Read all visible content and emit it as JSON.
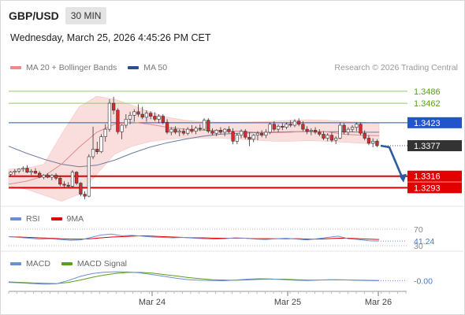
{
  "header": {
    "pair": "GBP/USD",
    "timeframe": "30 MIN",
    "datetime": "Wednesday, March 25, 2026 4:45:26 PM CET"
  },
  "legend": {
    "items": [
      {
        "label": "MA 20 + Bollinger Bands",
        "color": "#f08a8a"
      },
      {
        "label": "MA 50",
        "color": "#2b4f8c"
      }
    ],
    "credit": "Research © 2026 Trading Central"
  },
  "rsi_legend": {
    "items": [
      {
        "label": "RSI",
        "color": "#6a8fd8"
      },
      {
        "label": "9MA",
        "color": "#e00000"
      }
    ]
  },
  "macd_legend": {
    "items": [
      {
        "label": "MACD",
        "color": "#6a8fd8"
      },
      {
        "label": "MACD Signal",
        "color": "#5a9e1a"
      }
    ]
  },
  "colors": {
    "bull": "#ffffff",
    "bear": "#d92b2b",
    "wick": "#333333",
    "resistance": "#2255cc",
    "support": "#e00000",
    "target": "#8fc86a",
    "ma50": "#6b7a9c",
    "ma20": "#e08a8a",
    "band": "#fadede",
    "arrow": "#2b5c9e",
    "last": "#333333"
  },
  "chart_data": [
    {
      "type": "candlestick",
      "panel": "price",
      "x_labels": [
        "Mar 24",
        "Mar 25",
        "Mar 26"
      ],
      "ylim": [
        1.3262,
        1.3511
      ],
      "levels": [
        {
          "value": 1.3486,
          "label": "1.3486",
          "kind": "target"
        },
        {
          "value": 1.3462,
          "label": "1.3462",
          "kind": "target"
        },
        {
          "value": 1.3423,
          "label": "1.3423",
          "kind": "resistance"
        },
        {
          "value": 1.3377,
          "label": "1.3377",
          "kind": "last"
        },
        {
          "value": 1.3316,
          "label": "1.3316",
          "kind": "support"
        },
        {
          "value": 1.3293,
          "label": "1.3293",
          "kind": "support"
        }
      ],
      "candles": [
        [
          1.332,
          1.3326,
          1.3315,
          1.3324
        ],
        [
          1.3324,
          1.333,
          1.3318,
          1.3326
        ],
        [
          1.3326,
          1.3332,
          1.3322,
          1.333
        ],
        [
          1.333,
          1.3336,
          1.3325,
          1.3332
        ],
        [
          1.3332,
          1.3338,
          1.3322,
          1.3324
        ],
        [
          1.3324,
          1.333,
          1.3318,
          1.3326
        ],
        [
          1.3326,
          1.3332,
          1.332,
          1.3322
        ],
        [
          1.3322,
          1.3326,
          1.3312,
          1.3314
        ],
        [
          1.3314,
          1.332,
          1.331,
          1.3318
        ],
        [
          1.3318,
          1.3322,
          1.3312,
          1.3314
        ],
        [
          1.3314,
          1.332,
          1.3308,
          1.3318
        ],
        [
          1.3318,
          1.3322,
          1.3308,
          1.3312
        ],
        [
          1.3312,
          1.3316,
          1.3296,
          1.33
        ],
        [
          1.33,
          1.3306,
          1.3292,
          1.3298
        ],
        [
          1.3298,
          1.3304,
          1.3294,
          1.3296
        ],
        [
          1.3296,
          1.3328,
          1.3294,
          1.3324
        ],
        [
          1.3324,
          1.3326,
          1.3298,
          1.3302
        ],
        [
          1.3302,
          1.3304,
          1.3276,
          1.328
        ],
        [
          1.328,
          1.3286,
          1.327,
          1.3276
        ],
        [
          1.3276,
          1.336,
          1.3274,
          1.3355
        ],
        [
          1.3355,
          1.3415,
          1.335,
          1.337
        ],
        [
          1.337,
          1.3385,
          1.336,
          1.3365
        ],
        [
          1.3365,
          1.34,
          1.3362,
          1.3395
        ],
        [
          1.3395,
          1.342,
          1.3385,
          1.341
        ],
        [
          1.341,
          1.347,
          1.3405,
          1.3462
        ],
        [
          1.3462,
          1.3475,
          1.344,
          1.3448
        ],
        [
          1.3448,
          1.3452,
          1.34,
          1.3405
        ],
        [
          1.3405,
          1.342,
          1.339,
          1.3418
        ],
        [
          1.3418,
          1.344,
          1.3412,
          1.343
        ],
        [
          1.343,
          1.3445,
          1.342,
          1.3438
        ],
        [
          1.3438,
          1.345,
          1.3425,
          1.3445
        ],
        [
          1.3445,
          1.346,
          1.3435,
          1.344
        ],
        [
          1.344,
          1.3455,
          1.343,
          1.3434
        ],
        [
          1.3434,
          1.3448,
          1.3425,
          1.3442
        ],
        [
          1.3442,
          1.3446,
          1.343,
          1.3436
        ],
        [
          1.3436,
          1.3444,
          1.3426,
          1.343
        ],
        [
          1.343,
          1.344,
          1.3422,
          1.3436
        ],
        [
          1.3436,
          1.344,
          1.342,
          1.3424
        ],
        [
          1.3424,
          1.343,
          1.34,
          1.3404
        ],
        [
          1.3404,
          1.3414,
          1.3398,
          1.341
        ],
        [
          1.341,
          1.3416,
          1.34,
          1.3404
        ],
        [
          1.3404,
          1.341,
          1.3396,
          1.3406
        ],
        [
          1.3406,
          1.3412,
          1.3398,
          1.3402
        ],
        [
          1.3402,
          1.3414,
          1.3398,
          1.341
        ],
        [
          1.341,
          1.3418,
          1.3402,
          1.3406
        ],
        [
          1.3406,
          1.3416,
          1.34,
          1.3412
        ],
        [
          1.3412,
          1.342,
          1.3406,
          1.341
        ],
        [
          1.341,
          1.3432,
          1.3408,
          1.3428
        ],
        [
          1.3428,
          1.3432,
          1.3402,
          1.3406
        ],
        [
          1.3406,
          1.3412,
          1.3398,
          1.3402
        ],
        [
          1.3402,
          1.341,
          1.3396,
          1.3408
        ],
        [
          1.3408,
          1.3414,
          1.34,
          1.3404
        ],
        [
          1.3404,
          1.3412,
          1.3396,
          1.341
        ],
        [
          1.341,
          1.3416,
          1.3402,
          1.3405
        ],
        [
          1.3405,
          1.3412,
          1.338,
          1.3386
        ],
        [
          1.3386,
          1.3402,
          1.338,
          1.3398
        ],
        [
          1.3398,
          1.341,
          1.3392,
          1.3406
        ],
        [
          1.3406,
          1.341,
          1.339,
          1.3394
        ],
        [
          1.3394,
          1.3404,
          1.3376,
          1.339
        ],
        [
          1.339,
          1.34,
          1.3384,
          1.3398
        ],
        [
          1.3398,
          1.3406,
          1.3388,
          1.3402
        ],
        [
          1.3402,
          1.3408,
          1.3394,
          1.3398
        ],
        [
          1.3398,
          1.341,
          1.3392,
          1.3404
        ],
        [
          1.3404,
          1.3424,
          1.34,
          1.342
        ],
        [
          1.342,
          1.3426,
          1.3406,
          1.341
        ],
        [
          1.341,
          1.342,
          1.3404,
          1.3416
        ],
        [
          1.3416,
          1.3422,
          1.3408,
          1.3414
        ],
        [
          1.3414,
          1.3424,
          1.341,
          1.342
        ],
        [
          1.342,
          1.3428,
          1.3414,
          1.3418
        ],
        [
          1.3418,
          1.343,
          1.3414,
          1.3426
        ],
        [
          1.3426,
          1.3432,
          1.3416,
          1.342
        ],
        [
          1.342,
          1.3426,
          1.3406,
          1.341
        ],
        [
          1.341,
          1.3416,
          1.34,
          1.3406
        ],
        [
          1.3406,
          1.3412,
          1.3398,
          1.3408
        ],
        [
          1.3408,
          1.3414,
          1.34,
          1.3404
        ],
        [
          1.3404,
          1.341,
          1.3396,
          1.34
        ],
        [
          1.34,
          1.3406,
          1.3388,
          1.3392
        ],
        [
          1.3392,
          1.3402,
          1.3386,
          1.3398
        ],
        [
          1.3398,
          1.3404,
          1.3384,
          1.3388
        ],
        [
          1.3388,
          1.3396,
          1.338,
          1.3392
        ],
        [
          1.3392,
          1.3424,
          1.339,
          1.3418
        ],
        [
          1.3418,
          1.3422,
          1.34,
          1.3404
        ],
        [
          1.3404,
          1.3414,
          1.3398,
          1.341
        ],
        [
          1.341,
          1.3418,
          1.3404,
          1.3414
        ],
        [
          1.3414,
          1.3424,
          1.3406,
          1.342
        ],
        [
          1.342,
          1.3424,
          1.3398,
          1.3402
        ],
        [
          1.3402,
          1.3408,
          1.3388,
          1.3392
        ],
        [
          1.3392,
          1.3398,
          1.3378,
          1.3382
        ],
        [
          1.3382,
          1.3392,
          1.3374,
          1.3386
        ],
        [
          1.3386,
          1.339,
          1.3374,
          1.3377
        ]
      ],
      "ma20": [
        1.33,
        1.3306,
        1.3316,
        1.334,
        1.3374,
        1.3404,
        1.342,
        1.3424,
        1.342,
        1.3414,
        1.341,
        1.3408,
        1.3407,
        1.3406,
        1.3404,
        1.3403,
        1.3404,
        1.3406,
        1.3405,
        1.34,
        1.3398,
        1.3397
      ],
      "ma50": [
        1.3376,
        1.3362,
        1.335,
        1.334,
        1.3335,
        1.3338,
        1.3348,
        1.3362,
        1.3374,
        1.3383,
        1.339,
        1.3396,
        1.34,
        1.3402,
        1.3403,
        1.3404,
        1.3405,
        1.3405,
        1.3405,
        1.3405,
        1.3404,
        1.3404
      ],
      "bb_upper": [
        1.333,
        1.3332,
        1.334,
        1.34,
        1.3455,
        1.3476,
        1.347,
        1.3458,
        1.3445,
        1.3434,
        1.3428,
        1.3425,
        1.3424,
        1.3424,
        1.3425,
        1.3426,
        1.3428,
        1.3429,
        1.3428,
        1.3426,
        1.3424,
        1.3422
      ],
      "bb_lower": [
        1.3296,
        1.329,
        1.3278,
        1.3266,
        1.328,
        1.332,
        1.336,
        1.3376,
        1.3385,
        1.339,
        1.3392,
        1.3392,
        1.3392,
        1.339,
        1.3388,
        1.3386,
        1.3386,
        1.3387,
        1.3386,
        1.3384,
        1.3382,
        1.338
      ]
    },
    {
      "type": "line",
      "panel": "rsi",
      "ylim": [
        28,
        72
      ],
      "levels": [
        {
          "value": 70,
          "label": "70"
        },
        {
          "value": 30,
          "label": "30"
        }
      ],
      "last_label": "41.24",
      "series": [
        {
          "name": "RSI",
          "values": [
            52,
            50,
            48,
            46,
            47,
            45,
            43,
            44,
            50,
            56,
            58,
            54,
            55,
            53,
            51,
            50,
            49,
            50,
            48,
            47,
            46,
            47,
            49,
            48,
            46,
            45,
            47,
            48,
            46,
            44,
            47,
            50,
            53,
            47,
            45,
            42,
            41.24
          ]
        },
        {
          "name": "9MA",
          "values": [
            52,
            51,
            50,
            49,
            48,
            47,
            46,
            46,
            47,
            49,
            51,
            52,
            53,
            54,
            53,
            52,
            51,
            50,
            49,
            49,
            48,
            48,
            48,
            48,
            47,
            47,
            47,
            47,
            47,
            46,
            46,
            47,
            48,
            48,
            47,
            46,
            45
          ]
        }
      ]
    },
    {
      "type": "line",
      "panel": "macd",
      "ylim": [
        -0.004,
        0.0045
      ],
      "last_label": "-0.00",
      "series": [
        {
          "name": "MACD",
          "values": [
            -0.0008,
            -0.001,
            -0.0013,
            -0.0016,
            -0.0014,
            0.0,
            0.0018,
            0.003,
            0.0036,
            0.0038,
            0.0037,
            0.0033,
            0.0026,
            0.0018,
            0.001,
            0.0004,
            0.0001,
            0.0,
            -0.0001,
            0.0002,
            0.0006,
            0.0008,
            0.0007,
            0.0004,
            0.0001,
            0.0,
            0.0002,
            0.0004,
            0.0003,
            0.0001,
            0.0,
            -0.0001
          ]
        },
        {
          "name": "MACD Signal",
          "values": [
            -0.0006,
            -0.0008,
            -0.001,
            -0.0012,
            -0.0013,
            -0.0008,
            0.0002,
            0.0014,
            0.0024,
            0.0031,
            0.0035,
            0.0035,
            0.0032,
            0.0026,
            0.002,
            0.0013,
            0.0008,
            0.0004,
            0.0002,
            0.0001,
            0.0003,
            0.0005,
            0.0006,
            0.0006,
            0.0004,
            0.0002,
            0.0002,
            0.0003,
            0.0003,
            0.0002,
            0.0001,
            0.0
          ]
        }
      ]
    }
  ]
}
